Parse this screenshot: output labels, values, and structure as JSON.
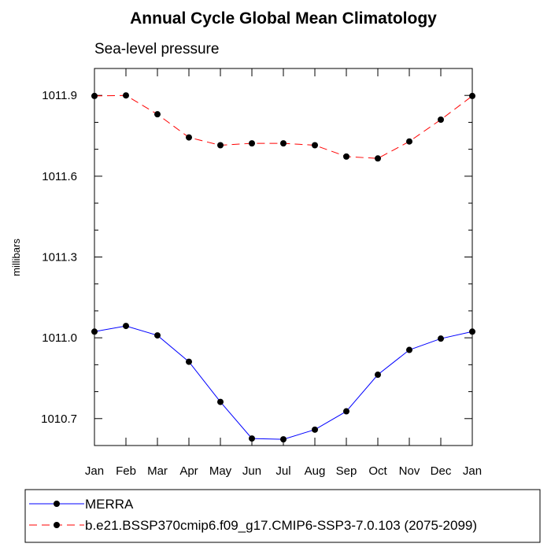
{
  "chart_data": {
    "type": "line",
    "title": "Annual Cycle Global Mean Climatology",
    "subtitle": "Sea-level pressure",
    "xlabel": "",
    "ylabel": "millibars",
    "categories": [
      "Jan",
      "Feb",
      "Mar",
      "Apr",
      "May",
      "Jun",
      "Jul",
      "Aug",
      "Sep",
      "Oct",
      "Nov",
      "Dec",
      "Jan"
    ],
    "y_ticks": [
      "1010.7",
      "1011.0",
      "1011.3",
      "1011.6",
      "1011.9"
    ],
    "ylim": [
      1010.6,
      1012.0
    ],
    "grid": false,
    "legend_position": "bottom",
    "series": [
      {
        "name": "MERRA",
        "color": "#0000ff",
        "line_style": "solid",
        "values": [
          1011.023,
          1011.044,
          1011.009,
          1010.911,
          1010.762,
          1010.626,
          1010.623,
          1010.659,
          1010.727,
          1010.863,
          1010.955,
          1010.997,
          1011.023
        ]
      },
      {
        "name": "b.e21.BSSP370cmip6.f09_g17.CMIP6-SSP3-7.0.103 (2075-2099)",
        "color": "#ff0000",
        "line_style": "dashed",
        "values": [
          1011.898,
          1011.9,
          1011.83,
          1011.744,
          1011.715,
          1011.722,
          1011.722,
          1011.715,
          1011.673,
          1011.666,
          1011.729,
          1011.81,
          1011.898
        ]
      }
    ]
  }
}
